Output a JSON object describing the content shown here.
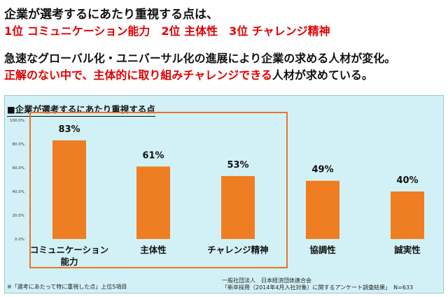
{
  "headlines": {
    "line1": "企業が選考するにあたり重視する点は、",
    "line2": "1位 コミュニケーション能力　2位 主体性　3位 チャレンジ精神",
    "line3": "急速なグローバル化・ユニバーサル化の進展により企業の求める人材が変化。",
    "line4_red": "正解のない中で、主体的に取り組みチャレンジできる",
    "line4_black": "人材が求めている。"
  },
  "footnotes": {
    "note": "※「選考にあたって特に重視した点」上位5項目",
    "org": "一般社団法人　日本経済団体連合会",
    "survey": "「新卒採用（2014年4月入社対象）に関するアンケート調査結果」　N=633"
  },
  "colors": {
    "bar": "#ef7d22",
    "panel": "#d2f1f6",
    "highlight_frame": "#e8742a",
    "headline_red": "#e00000"
  },
  "chart_data": {
    "type": "bar",
    "title": "■企業が選考するにあたり重視する点",
    "categories": [
      "コミュニケーション能力",
      "主体性",
      "チャレンジ精神",
      "協調性",
      "誠実性"
    ],
    "category_label_lines": [
      [
        "コミュニケーション",
        "能力"
      ],
      [
        "主体性"
      ],
      [
        "チャレンジ精神"
      ],
      [
        "協調性"
      ],
      [
        "誠実性"
      ]
    ],
    "values": [
      83,
      61,
      53,
      49,
      40
    ],
    "data_labels": [
      "83%",
      "61%",
      "53%",
      "49%",
      "40%"
    ],
    "y_ticks": [
      "0.0%",
      "20.0%",
      "40.0%",
      "60.0%",
      "80.0%",
      "100.0%"
    ],
    "ylim": [
      0,
      100
    ],
    "grid": false,
    "legend": "none",
    "highlighted_top_n": 3
  }
}
